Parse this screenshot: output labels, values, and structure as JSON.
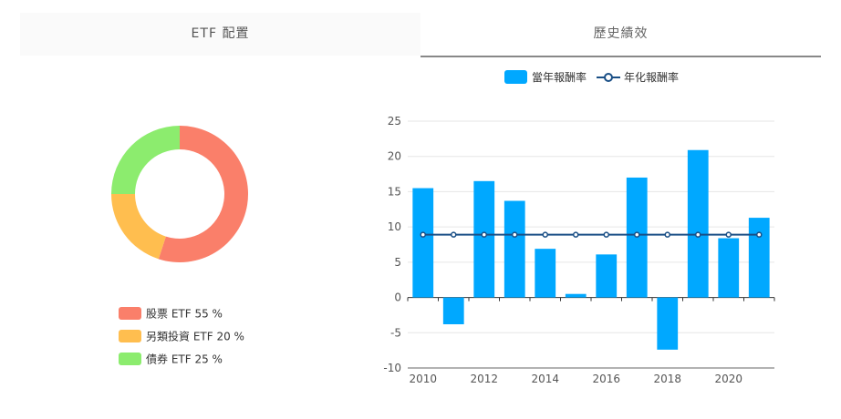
{
  "tabs": {
    "etf_allocation": "ETF 配置",
    "historical_performance": "歷史績效"
  },
  "allocation": {
    "items": [
      {
        "label": "股票 ETF 55 %",
        "value": 55,
        "color": "#fa7f6a"
      },
      {
        "label": "另類投資 ETF 20 %",
        "value": 20,
        "color": "#ffbe4f"
      },
      {
        "label": "債券 ETF 25 %",
        "value": 25,
        "color": "#8cec6e"
      }
    ]
  },
  "chart_data": {
    "type": "bar",
    "x": [
      2010,
      2011,
      2012,
      2013,
      2014,
      2015,
      2016,
      2017,
      2018,
      2019,
      2020,
      2021
    ],
    "xticks": [
      "2010",
      "2012",
      "2014",
      "2016",
      "2018",
      "2020"
    ],
    "yticks": [
      -10,
      -5,
      0,
      5,
      10,
      15,
      20,
      25
    ],
    "ylim": [
      -10,
      25
    ],
    "series": [
      {
        "name": "當年報酬率",
        "type": "bar",
        "color": "#00a8ff",
        "values": [
          15.5,
          -3.8,
          16.5,
          13.7,
          6.9,
          0.5,
          6.1,
          17.0,
          -7.4,
          20.9,
          8.4,
          11.3
        ]
      },
      {
        "name": "年化報酬率",
        "type": "line",
        "color": "#1a4f86",
        "values": [
          8.9,
          8.9,
          8.9,
          8.9,
          8.9,
          8.9,
          8.9,
          8.9,
          8.9,
          8.9,
          8.9,
          8.9
        ]
      }
    ],
    "grid": true,
    "legend": "top-center"
  }
}
